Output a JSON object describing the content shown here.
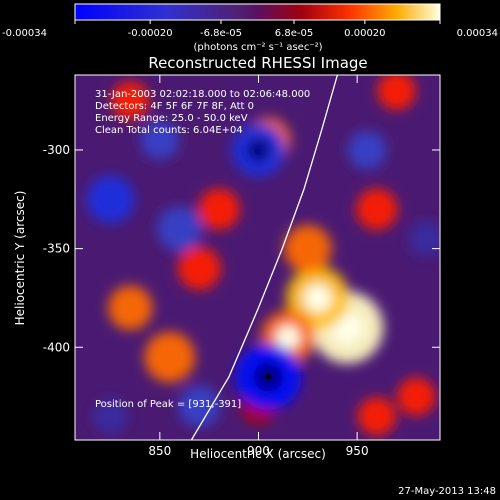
{
  "chart_data": {
    "type": "heatmap",
    "title": "Reconstructed RHESSI Image",
    "xlabel": "Heliocentric X (arcsec)",
    "ylabel": "Heliocentric Y (arcsec)",
    "xlim": [
      807,
      992
    ],
    "ylim": [
      -447,
      -262
    ],
    "x_ticks": [
      850,
      900,
      950
    ],
    "y_ticks": [
      -300,
      -350,
      -400
    ],
    "colorbar": {
      "ticks": [
        "-0.00034",
        "-0.00020",
        "-6.8e-05",
        "6.8e-05",
        "0.00020",
        "0.00034"
      ],
      "tick_values": [
        -0.00034,
        -0.0002,
        -6.8e-05,
        6.8e-05,
        0.0002,
        0.00034
      ],
      "unit_label": "(photons cm⁻² s⁻¹ asec⁻²)",
      "range": [
        -0.00034,
        0.00034
      ]
    },
    "annotations": [
      "31-Jan-2003 02:02:18.000 to 02:06:48.000",
      "Detectors: 4F 5F 6F 7F 8F, Att 0",
      "Energy Range: 25.0 - 50.0 keV",
      "Clean    Total counts: 6.04E+04"
    ],
    "peak_label": "Position of Peak = [931,-391]",
    "peak": [
      931,
      -391
    ],
    "limb_curve": [
      [
        866,
        -447
      ],
      [
        885,
        -415
      ],
      [
        900,
        -380
      ],
      [
        912,
        -350
      ],
      [
        923,
        -320
      ],
      [
        932,
        -290
      ],
      [
        940,
        -262
      ]
    ],
    "features": [
      {
        "x": 945,
        "y": -390,
        "value": 0.00034
      },
      {
        "x": 930,
        "y": -375,
        "value": 0.00028
      },
      {
        "x": 915,
        "y": -395,
        "value": 0.00022
      },
      {
        "x": 925,
        "y": -350,
        "value": 0.00018
      },
      {
        "x": 855,
        "y": -405,
        "value": 0.0002
      },
      {
        "x": 835,
        "y": -380,
        "value": 0.00016
      },
      {
        "x": 870,
        "y": -360,
        "value": 0.00015
      },
      {
        "x": 880,
        "y": -330,
        "value": 0.00014
      },
      {
        "x": 905,
        "y": -295,
        "value": 0.00016
      },
      {
        "x": 835,
        "y": -275,
        "value": 0.00012
      },
      {
        "x": 960,
        "y": -330,
        "value": 0.00014
      },
      {
        "x": 970,
        "y": -270,
        "value": 0.00012
      },
      {
        "x": 980,
        "y": -425,
        "value": 0.00012
      },
      {
        "x": 900,
        "y": -430,
        "value": 0.0001
      },
      {
        "x": 960,
        "y": -435,
        "value": 0.00012
      },
      {
        "x": 905,
        "y": -415,
        "value": -0.0003
      },
      {
        "x": 900,
        "y": -300,
        "value": -0.00022
      },
      {
        "x": 825,
        "y": -325,
        "value": -0.00018
      },
      {
        "x": 860,
        "y": -340,
        "value": -0.00016
      },
      {
        "x": 850,
        "y": -295,
        "value": -0.00012
      },
      {
        "x": 870,
        "y": -430,
        "value": -0.00014
      },
      {
        "x": 955,
        "y": -300,
        "value": -0.00012
      },
      {
        "x": 985,
        "y": -345,
        "value": -0.0001
      },
      {
        "x": 825,
        "y": -435,
        "value": -0.0001
      }
    ]
  },
  "footer": {
    "timestamp": "27-May-2013 13:48"
  }
}
